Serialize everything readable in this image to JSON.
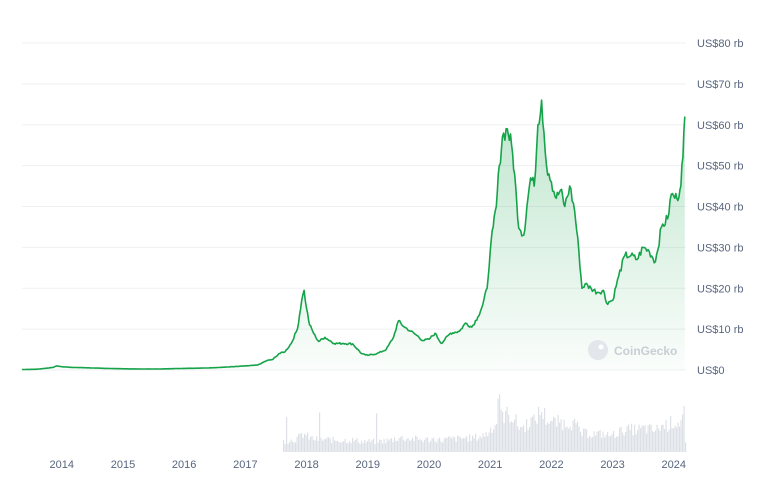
{
  "watermark": "CoinGecko",
  "colors": {
    "line": "#16a34a",
    "area_top": "#16a34a",
    "grid": "#eef0f3",
    "volume": "#dde1e6",
    "axis_text": "#58667e"
  },
  "chart_data": {
    "type": "area",
    "title": "",
    "xlabel": "",
    "ylabel": "",
    "y_tick_labels": [
      "US$0",
      "US$10 rb",
      "US$20 rb",
      "US$30 rb",
      "US$40 rb",
      "US$50 rb",
      "US$60 rb",
      "US$70 rb",
      "US$80 rb"
    ],
    "y_tick_values": [
      0,
      10000,
      20000,
      30000,
      40000,
      50000,
      60000,
      70000,
      80000
    ],
    "x_tick_labels": [
      "2014",
      "2015",
      "2016",
      "2017",
      "2018",
      "2019",
      "2020",
      "2021",
      "2022",
      "2023",
      "2024"
    ],
    "x_tick_values": [
      2014,
      2015,
      2016,
      2017,
      2018,
      2019,
      2020,
      2021,
      2022,
      2023,
      2024
    ],
    "xlim": [
      2013.35,
      2024.2
    ],
    "ylim": [
      0,
      80000
    ],
    "grid": true,
    "series": [
      {
        "x": [
          2013.35,
          2013.6,
          2013.85,
          2013.92,
          2014.0,
          2014.15,
          2014.4,
          2014.7,
          2015.0,
          2015.3,
          2015.6,
          2016.0,
          2016.4,
          2016.6,
          2016.9,
          2017.0,
          2017.2,
          2017.35,
          2017.45,
          2017.55,
          2017.65,
          2017.75,
          2017.85,
          2017.92,
          2017.96,
          2018.0,
          2018.05,
          2018.1,
          2018.15,
          2018.2,
          2018.3,
          2018.45,
          2018.6,
          2018.75,
          2018.9,
          2018.96,
          2019.0,
          2019.15,
          2019.3,
          2019.42,
          2019.5,
          2019.6,
          2019.7,
          2019.8,
          2019.9,
          2020.0,
          2020.1,
          2020.2,
          2020.35,
          2020.5,
          2020.6,
          2020.7,
          2020.8,
          2020.88,
          2020.95,
          2021.0,
          2021.05,
          2021.1,
          2021.15,
          2021.2,
          2021.28,
          2021.35,
          2021.4,
          2021.45,
          2021.5,
          2021.55,
          2021.6,
          2021.66,
          2021.72,
          2021.78,
          2021.84,
          2021.88,
          2021.92,
          2021.96,
          2022.0,
          2022.08,
          2022.15,
          2022.22,
          2022.3,
          2022.38,
          2022.45,
          2022.5,
          2022.55,
          2022.65,
          2022.75,
          2022.85,
          2022.9,
          2023.0,
          2023.1,
          2023.2,
          2023.3,
          2023.4,
          2023.5,
          2023.6,
          2023.7,
          2023.8,
          2023.9,
          2023.96,
          2024.0,
          2024.05,
          2024.1,
          2024.15,
          2024.18
        ],
        "values": [
          120,
          200,
          600,
          1000,
          800,
          650,
          550,
          400,
          300,
          250,
          250,
          400,
          500,
          650,
          900,
          1000,
          1200,
          2300,
          2600,
          4000,
          4500,
          6500,
          10000,
          17000,
          19500,
          15000,
          11000,
          9500,
          8000,
          7000,
          8000,
          6500,
          6500,
          6400,
          4000,
          3700,
          3600,
          4000,
          5000,
          8000,
          12000,
          10500,
          9500,
          8500,
          7200,
          7500,
          9000,
          6500,
          9000,
          9500,
          11500,
          10500,
          13000,
          16000,
          20000,
          29000,
          35000,
          40000,
          50000,
          57000,
          59000,
          55000,
          48000,
          37000,
          34000,
          33000,
          40000,
          47000,
          45000,
          60000,
          66000,
          58000,
          50000,
          48000,
          46000,
          42000,
          44000,
          40000,
          45000,
          39000,
          29000,
          20000,
          21000,
          20000,
          19000,
          19500,
          16500,
          17000,
          23000,
          28000,
          28000,
          27000,
          30000,
          29000,
          26500,
          35000,
          37000,
          43000,
          42500,
          42000,
          44000,
          52000,
          62000
        ]
      }
    ]
  }
}
